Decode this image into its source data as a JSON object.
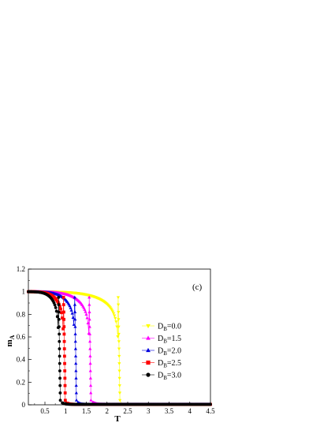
{
  "chart_data": {
    "type": "scatter",
    "panel_label": "(c)",
    "xlabel": "T",
    "ylabel_main": "m",
    "ylabel_sub": "A",
    "xlim": [
      0.1,
      4.5
    ],
    "ylim": [
      0,
      1.2
    ],
    "x_ticks": [
      0.5,
      1,
      1.5,
      2,
      2.5,
      3,
      3.5,
      4,
      4.5
    ],
    "x_tick_labels": [
      "0.5",
      "1",
      "1.5",
      "2",
      "2.5",
      "3",
      "3.5",
      "4",
      "4.5"
    ],
    "y_ticks": [
      0,
      0.2,
      0.4,
      0.6,
      0.8,
      1,
      1.2
    ],
    "y_tick_labels": [
      "0",
      "0.2",
      "0.4",
      "0.6",
      "0.8",
      "1",
      "1.2"
    ],
    "grid": false,
    "legend_position": "right",
    "series": [
      {
        "name": "D",
        "sub": "B",
        "suffix": "=0.0",
        "color": "#ffff00",
        "marker": "triangle-down",
        "Tc": 2.27,
        "beta": 0.125,
        "tail": 2.35
      },
      {
        "name": "D",
        "sub": "B",
        "suffix": "=1.5",
        "color": "#ff00ff",
        "marker": "triangle-up",
        "Tc": 1.57,
        "beta": 0.125,
        "tail": 1.8
      },
      {
        "name": "D",
        "sub": "B",
        "suffix": "=2.0",
        "color": "#0000dd",
        "marker": "triangle-up",
        "Tc": 1.22,
        "beta": 0.125,
        "tail": 1.4
      },
      {
        "name": "D",
        "sub": "B",
        "suffix": "=2.5",
        "color": "#ff0000",
        "marker": "square",
        "Tc": 0.95,
        "beta": 0.125,
        "tail": 1.1
      },
      {
        "name": "D",
        "sub": "B",
        "suffix": "=3.0",
        "color": "#000000",
        "marker": "circle",
        "Tc": 0.83,
        "beta": 0.125,
        "tail": 1.0
      }
    ]
  }
}
